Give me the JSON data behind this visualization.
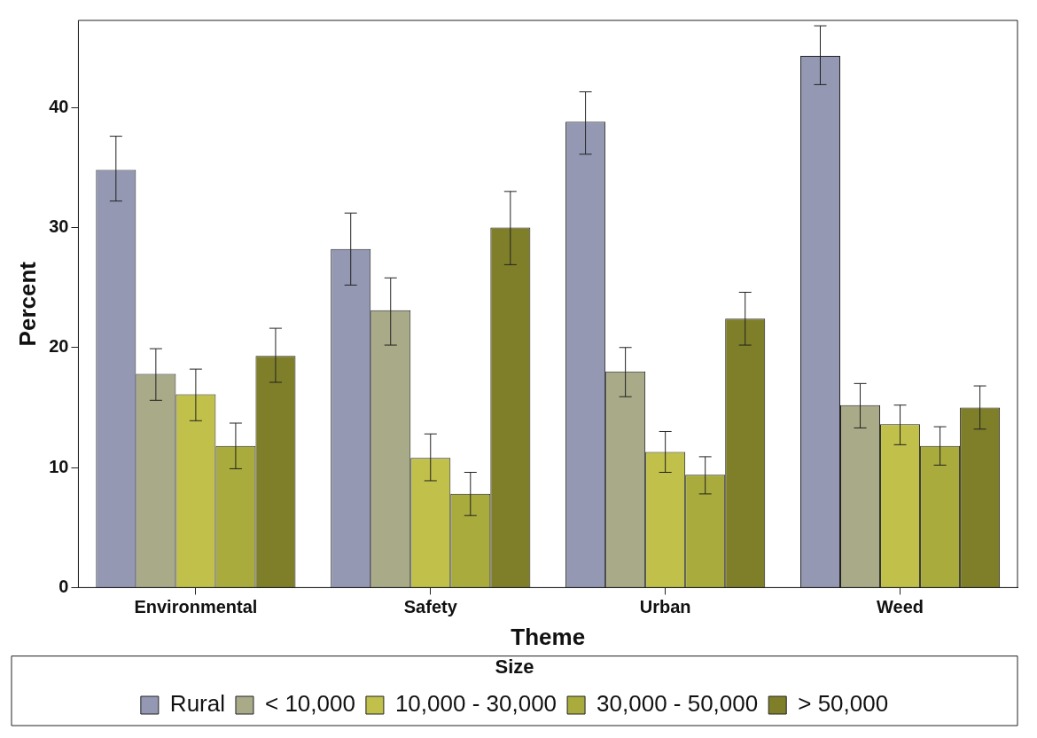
{
  "chart_data": {
    "type": "bar",
    "xlabel": "Theme",
    "ylabel": "Percent",
    "legend_title": "Size",
    "legend": "bottom",
    "grid": false,
    "categories": [
      "Environmental",
      "Safety",
      "Urban",
      "Weed"
    ],
    "ylim": [
      0,
      47.25
    ],
    "yticks": [
      0,
      10,
      20,
      30,
      40
    ],
    "series": [
      {
        "name": "Rural",
        "color": "#9498b3",
        "values": [
          34.8,
          28.2,
          38.8,
          44.3
        ],
        "errors": [
          [
            32.2,
            37.6
          ],
          [
            25.2,
            31.2
          ],
          [
            36.1,
            41.3
          ],
          [
            41.9,
            46.8
          ]
        ]
      },
      {
        "name": "< 10,000",
        "color": "#a8aa88",
        "values": [
          17.8,
          23.1,
          18.0,
          15.2
        ],
        "errors": [
          [
            15.6,
            19.9
          ],
          [
            20.2,
            25.8
          ],
          [
            15.9,
            20.0
          ],
          [
            13.3,
            17.0
          ]
        ]
      },
      {
        "name": "10,000 - 30,000",
        "color": "#c0c04a",
        "values": [
          16.1,
          10.8,
          11.3,
          13.6
        ],
        "errors": [
          [
            13.9,
            18.2
          ],
          [
            8.9,
            12.8
          ],
          [
            9.6,
            13.0
          ],
          [
            11.9,
            15.2
          ]
        ]
      },
      {
        "name": "30,000 - 50,000",
        "color": "#a9ab3c",
        "values": [
          11.8,
          7.8,
          9.4,
          11.8
        ],
        "errors": [
          [
            9.9,
            13.7
          ],
          [
            6.0,
            9.6
          ],
          [
            7.8,
            10.9
          ],
          [
            10.2,
            13.4
          ]
        ]
      },
      {
        "name": "> 50,000",
        "color": "#7f7f2a",
        "values": [
          19.3,
          30.0,
          22.4,
          15.0
        ],
        "errors": [
          [
            17.1,
            21.6
          ],
          [
            26.9,
            33.0
          ],
          [
            20.2,
            24.6
          ],
          [
            13.2,
            16.8
          ]
        ]
      }
    ]
  }
}
